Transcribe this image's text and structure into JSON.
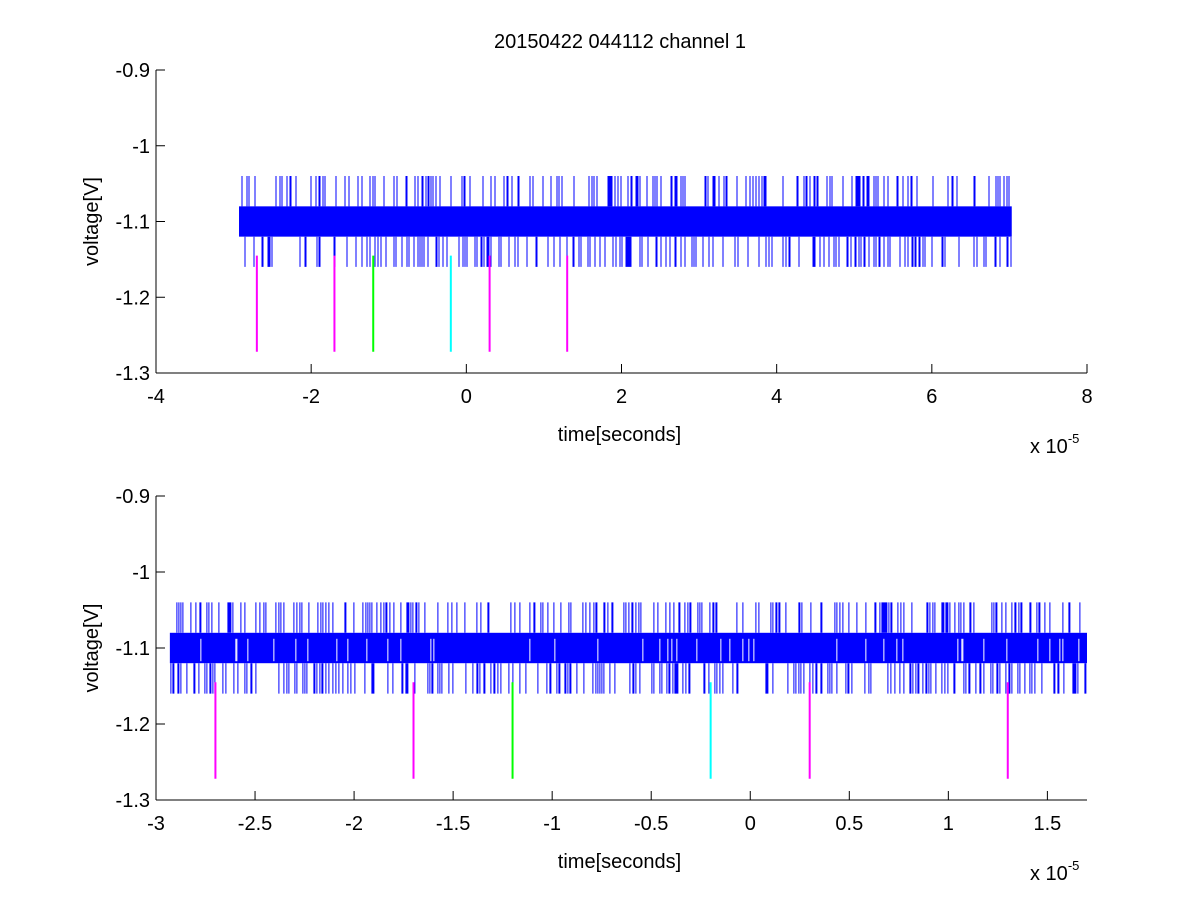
{
  "title": "20150422 044112 channel 1",
  "colors": {
    "signal": "#0000ff",
    "magenta": "#ff00ff",
    "green": "#00ff00",
    "cyan": "#00ffff"
  },
  "chart_data": [
    {
      "type": "line",
      "xlabel": "time[seconds]",
      "ylabel": "voltage[V]",
      "x_multiplier_label": "x 10",
      "x_multiplier_exponent": "-5",
      "xlim": [
        -4,
        8
      ],
      "ylim": [
        -1.3,
        -0.9
      ],
      "y_reversed": true,
      "grid": false,
      "xticks": [
        -4,
        -2,
        0,
        2,
        4,
        6,
        8
      ],
      "xtick_labels": [
        "-4",
        "-2",
        "0",
        "2",
        "4",
        "6",
        "8"
      ],
      "yticks": [
        -0.9,
        -1.0,
        -1.1,
        -1.2,
        -1.3
      ],
      "ytick_labels": [
        "-0.9",
        "-1",
        "-1.1",
        "-1.2",
        "-1.3"
      ],
      "series": [
        {
          "signal_x_range": [
            -2.93,
            7.03
          ],
          "band": [
            -1.12,
            -1.08
          ],
          "spike_range": [
            -1.16,
            -1.04
          ]
        }
      ],
      "markers": [
        {
          "x": -2.7,
          "y_range": [
            -1.272,
            -1.145
          ],
          "color": "magenta"
        },
        {
          "x": -1.7,
          "y_range": [
            -1.272,
            -1.145
          ],
          "color": "magenta"
        },
        {
          "x": -1.2,
          "y_range": [
            -1.272,
            -1.145
          ],
          "color": "green"
        },
        {
          "x": -0.2,
          "y_range": [
            -1.272,
            -1.145
          ],
          "color": "cyan"
        },
        {
          "x": 0.3,
          "y_range": [
            -1.272,
            -1.145
          ],
          "color": "magenta"
        },
        {
          "x": 1.3,
          "y_range": [
            -1.272,
            -1.145
          ],
          "color": "magenta"
        }
      ]
    },
    {
      "type": "line",
      "xlabel": "time[seconds]",
      "ylabel": "voltage[V]",
      "x_multiplier_label": "x 10",
      "x_multiplier_exponent": "-5",
      "xlim": [
        -3.0,
        1.7
      ],
      "ylim": [
        -1.3,
        -0.9
      ],
      "y_reversed": true,
      "grid": false,
      "xticks": [
        -3,
        -2.5,
        -2,
        -1.5,
        -1,
        -0.5,
        0,
        0.5,
        1,
        1.5
      ],
      "xtick_labels": [
        "-3",
        "-2.5",
        "-2",
        "-1.5",
        "-1",
        "-0.5",
        "0",
        "0.5",
        "1",
        "1.5"
      ],
      "yticks": [
        -0.9,
        -1.0,
        -1.1,
        -1.2,
        -1.3
      ],
      "ytick_labels": [
        "-0.9",
        "-1",
        "-1.1",
        "-1.2",
        "-1.3"
      ],
      "series": [
        {
          "signal_x_range": [
            -2.93,
            1.7
          ],
          "band": [
            -1.12,
            -1.08
          ],
          "spike_range": [
            -1.16,
            -1.04
          ]
        }
      ],
      "markers": [
        {
          "x": -2.7,
          "y_range": [
            -1.272,
            -1.145
          ],
          "color": "magenta"
        },
        {
          "x": -1.7,
          "y_range": [
            -1.272,
            -1.145
          ],
          "color": "magenta"
        },
        {
          "x": -1.2,
          "y_range": [
            -1.272,
            -1.145
          ],
          "color": "green"
        },
        {
          "x": -0.2,
          "y_range": [
            -1.272,
            -1.145
          ],
          "color": "cyan"
        },
        {
          "x": 0.3,
          "y_range": [
            -1.272,
            -1.145
          ],
          "color": "magenta"
        },
        {
          "x": 1.3,
          "y_range": [
            -1.272,
            -1.145
          ],
          "color": "magenta"
        }
      ]
    }
  ]
}
